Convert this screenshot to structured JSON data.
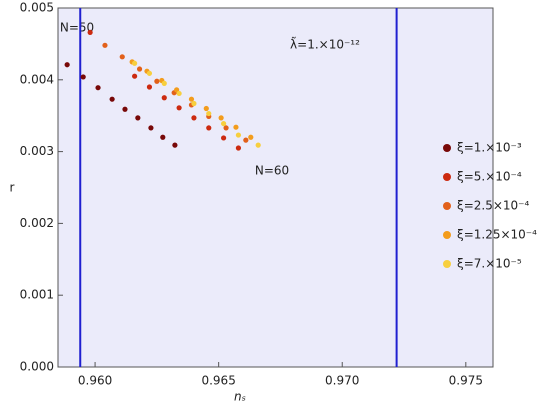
{
  "chart_data": {
    "type": "scatter",
    "x_label": "nₛ",
    "y_label": "r",
    "xlim": [
      0.9585,
      0.9761
    ],
    "ylim": [
      0,
      0.005
    ],
    "xticks": [
      {
        "value": 0.96,
        "label": "0.960"
      },
      {
        "value": 0.965,
        "label": "0.965"
      },
      {
        "value": 0.97,
        "label": "0.970"
      },
      {
        "value": 0.975,
        "label": "0.975"
      }
    ],
    "yticks": [
      {
        "value": 0,
        "label": "0.000"
      },
      {
        "value": 0.001,
        "label": "0.001"
      },
      {
        "value": 0.002,
        "label": "0.002"
      },
      {
        "value": 0.003,
        "label": "0.003"
      },
      {
        "value": 0.004,
        "label": "0.004"
      },
      {
        "value": 0.005,
        "label": "0.005"
      }
    ],
    "vlines": [
      0.9594,
      0.9722
    ],
    "vline_color": "#1f1fd0",
    "background": "#ebebfa",
    "annotations": [
      "N=50",
      "N=60",
      "λ̃=1.×10⁻¹²"
    ],
    "series": [
      {
        "name": "ξ=1.×10⁻³",
        "color": "#780808",
        "x": [
          0.95887,
          0.95952,
          0.96012,
          0.96069,
          0.96121,
          0.96173,
          0.96226,
          0.96274,
          0.96323
        ],
        "values": [
          0.00421,
          0.00404,
          0.00389,
          0.00373,
          0.00359,
          0.00347,
          0.00333,
          0.0032,
          0.00309
        ]
      },
      {
        "name": "ξ=5.×10⁻⁴",
        "color": "#cc2a10",
        "x": [
          0.9598,
          0.9616,
          0.9622,
          0.9628,
          0.9634,
          0.964,
          0.9646,
          0.9652,
          0.9658
        ],
        "values": [
          0.00466,
          0.00405,
          0.0039,
          0.00375,
          0.00361,
          0.00347,
          0.00333,
          0.00319,
          0.00305
        ]
      },
      {
        "name": "ξ=2.5×10⁻⁴",
        "color": "#e2601a",
        "x": [
          0.9604,
          0.9611,
          0.9618,
          0.9625,
          0.9632,
          0.9639,
          0.9646,
          0.9653,
          0.9661
        ],
        "values": [
          0.00448,
          0.00432,
          0.00415,
          0.00398,
          0.00382,
          0.00365,
          0.00349,
          0.00333,
          0.00316
        ]
      },
      {
        "name": "ξ=1.25×10⁻⁴",
        "color": "#f39c1c",
        "x": [
          0.9615,
          0.9621,
          0.9627,
          0.9633,
          0.9639,
          0.9645,
          0.9651,
          0.9657,
          0.9663
        ],
        "values": [
          0.00425,
          0.00412,
          0.00399,
          0.00386,
          0.00373,
          0.0036,
          0.00347,
          0.00334,
          0.0032
        ]
      },
      {
        "name": "ξ=7.×10⁻⁵",
        "color": "#f7cf3e",
        "x": [
          0.9616,
          0.9622,
          0.9628,
          0.9634,
          0.964,
          0.9646,
          0.9652,
          0.9658,
          0.9666
        ],
        "values": [
          0.00423,
          0.00409,
          0.00395,
          0.00381,
          0.00367,
          0.00353,
          0.00339,
          0.00323,
          0.00309
        ]
      }
    ]
  }
}
